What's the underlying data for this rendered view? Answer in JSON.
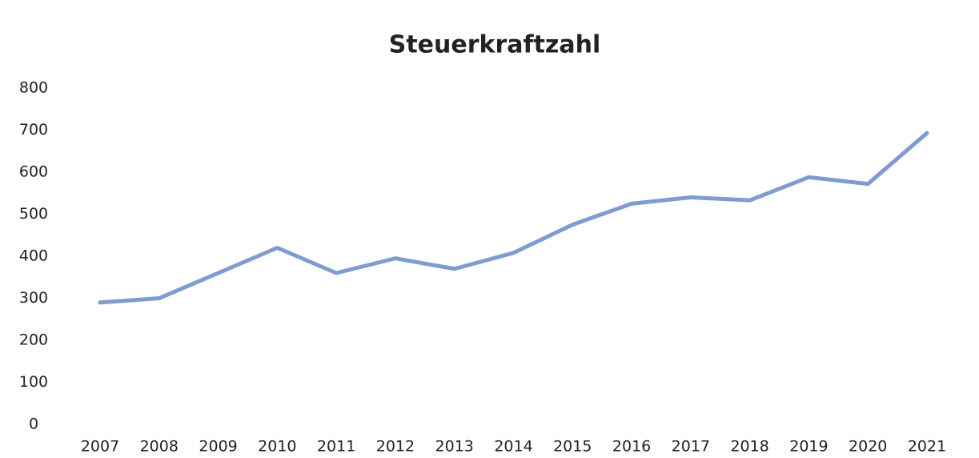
{
  "chart_data": {
    "type": "line",
    "title": "Steuerkraftzahl",
    "categories": [
      "2007",
      "2008",
      "2009",
      "2010",
      "2011",
      "2012",
      "2013",
      "2014",
      "2015",
      "2016",
      "2017",
      "2018",
      "2019",
      "2020",
      "2021"
    ],
    "series": [
      {
        "name": null,
        "color": "#7f9bd0",
        "values": [
          290,
          300,
          360,
          420,
          360,
          395,
          370,
          408,
          475,
          525,
          540,
          533,
          588,
          572,
          693
        ]
      }
    ],
    "ylim": [
      0,
      800
    ],
    "yticks": [
      0,
      100,
      200,
      300,
      400,
      500,
      600,
      700,
      800
    ],
    "grid": false
  }
}
